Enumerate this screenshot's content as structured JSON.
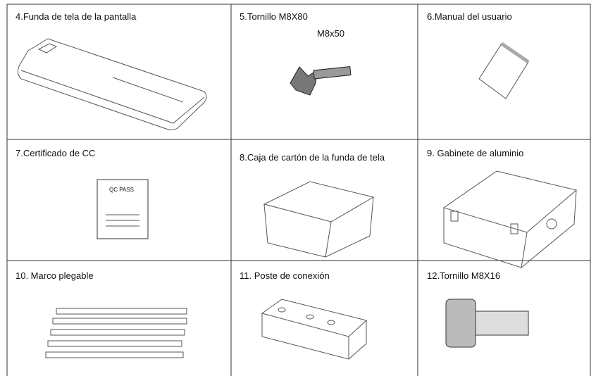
{
  "table": {
    "rows": [
      [
        {
          "label": "4.Funda de tela de la pantalla"
        },
        {
          "label": "5.Tornillo M8X80",
          "note": "M8x50"
        },
        {
          "label": "6.Manual del usuario"
        }
      ],
      [
        {
          "label": "7.Certificado de CC",
          "stamp": "QC PASS"
        },
        {
          "label": "8.Caja de cartón de la funda de tela"
        },
        {
          "label": "9. Gabinete de aluminio"
        }
      ],
      [
        {
          "label": "10. Marco plegable"
        },
        {
          "label": "11. Poste de conexión"
        },
        {
          "label": "12.Tornillo M8X16"
        }
      ]
    ]
  }
}
